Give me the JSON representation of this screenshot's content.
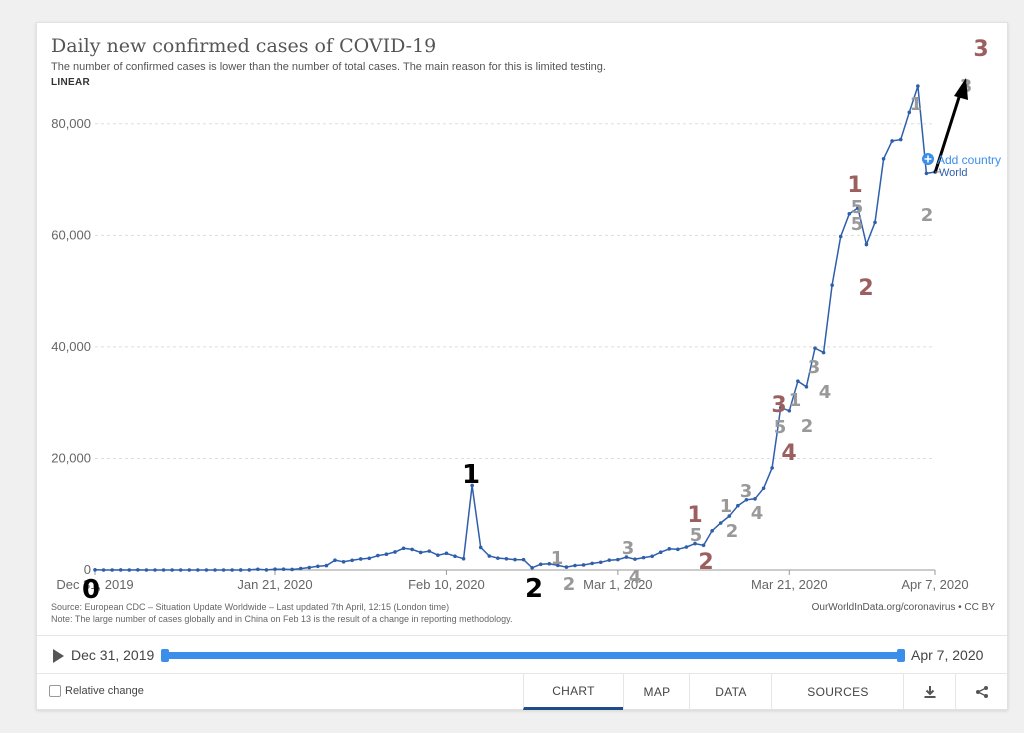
{
  "header": {
    "title": "Daily new confirmed cases of COVID-19",
    "subtitle": "The number of confirmed cases is lower than the number of total cases. The main reason for this is limited testing.",
    "scale": "LINEAR"
  },
  "chart_data": {
    "type": "line",
    "xlabel": "",
    "ylabel": "",
    "x_range": [
      "Dec 31, 2019",
      "Apr 7, 2020"
    ],
    "ylim": [
      0,
      90000
    ],
    "y_ticks": [
      0,
      20000,
      40000,
      60000,
      80000
    ],
    "y_tick_labels": [
      "0",
      "20,000",
      "40,000",
      "60,000",
      "80,000"
    ],
    "x_tick_labels": [
      "Dec 31, 2019",
      "Jan 21, 2020",
      "Feb 10, 2020",
      "Mar 1, 2020",
      "Mar 21, 2020",
      "Apr 7, 2020"
    ],
    "x_tick_days": [
      0,
      21,
      41,
      61,
      81,
      98
    ],
    "grid": true,
    "series": [
      {
        "name": "World",
        "color": "#2e5eac",
        "values": [
          27,
          0,
          0,
          17,
          0,
          15,
          0,
          0,
          0,
          0,
          0,
          0,
          0,
          0,
          1,
          0,
          0,
          4,
          17,
          136,
          19,
          151,
          140,
          97,
          259,
          441,
          665,
          787,
          1753,
          1466,
          1740,
          1980,
          2101,
          2590,
          2829,
          3235,
          3884,
          3694,
          3143,
          3385,
          2652,
          2984,
          2473,
          2022,
          15153,
          4050,
          2502,
          2128,
          2008,
          1870,
          1853,
          401,
          1024,
          1120,
          819,
          524,
          798,
          902,
          1179,
          1382,
          1763,
          1860,
          2311,
          1942,
          2220,
          2458,
          3188,
          3791,
          3706,
          4113,
          4734,
          4431,
          7019,
          8420,
          9669,
          11524,
          12584,
          12760,
          14650,
          18300,
          29108,
          28541,
          33852,
          32847,
          39777,
          38982,
          51072,
          59788,
          63866,
          64909,
          58365,
          62323,
          73719,
          76923,
          77163,
          82052,
          86755,
          71102,
          71363
        ]
      }
    ],
    "annotations": {
      "add_country": "Add country",
      "end_label": "World"
    }
  },
  "overlay_digits": [
    {
      "text": "0",
      "color": "#000000"
    },
    {
      "text": "1",
      "color": "#000000"
    },
    {
      "text": "2",
      "color": "#000000"
    },
    {
      "text": "1",
      "color": "#999999"
    },
    {
      "text": "2",
      "color": "#999999"
    },
    {
      "text": "3",
      "color": "#999999"
    },
    {
      "text": "4",
      "color": "#999999"
    },
    {
      "text": "1",
      "color": "#9c5f5f"
    },
    {
      "text": "5",
      "color": "#999999"
    },
    {
      "text": "2",
      "color": "#9c5f5f"
    },
    {
      "text": "1",
      "color": "#999999"
    },
    {
      "text": "2",
      "color": "#999999"
    },
    {
      "text": "3",
      "color": "#999999"
    },
    {
      "text": "4",
      "color": "#999999"
    },
    {
      "text": "3",
      "color": "#9c5f5f"
    },
    {
      "text": "5",
      "color": "#999999"
    },
    {
      "text": "4",
      "color": "#9c5f5f"
    },
    {
      "text": "1",
      "color": "#999999"
    },
    {
      "text": "2",
      "color": "#999999"
    },
    {
      "text": "3",
      "color": "#999999"
    },
    {
      "text": "4",
      "color": "#999999"
    },
    {
      "text": "1",
      "color": "#9c5f5f"
    },
    {
      "text": "5",
      "color": "#999999"
    },
    {
      "text": "5",
      "color": "#999999"
    },
    {
      "text": "2",
      "color": "#9c5f5f"
    },
    {
      "text": "1",
      "color": "#999999"
    },
    {
      "text": "2",
      "color": "#999999"
    },
    {
      "text": "3",
      "color": "#999999"
    },
    {
      "text": "3",
      "color": "#9c5f5f"
    }
  ],
  "footer_notes": {
    "source": "Source: European CDC – Situation Update Worldwide – Last updated 7th April, 12:15 (London time)",
    "note": "Note: The large number of cases globally and in China on Feb 13 is the result of a change in reporting methodology.",
    "owid": "OurWorldInData.org/coronavirus • CC BY"
  },
  "timeline": {
    "start": "Dec 31, 2019",
    "end": "Apr 7, 2020",
    "play_icon": "play-icon"
  },
  "controls": {
    "relative_change": "Relative change",
    "tabs": [
      "CHART",
      "MAP",
      "DATA",
      "SOURCES"
    ],
    "active_tab": "CHART",
    "icons": [
      "download-icon",
      "share-icon"
    ]
  },
  "colors": {
    "line": "#2e5eac",
    "accent": "#3b8ee9",
    "active_tab": "#1d4e89"
  }
}
